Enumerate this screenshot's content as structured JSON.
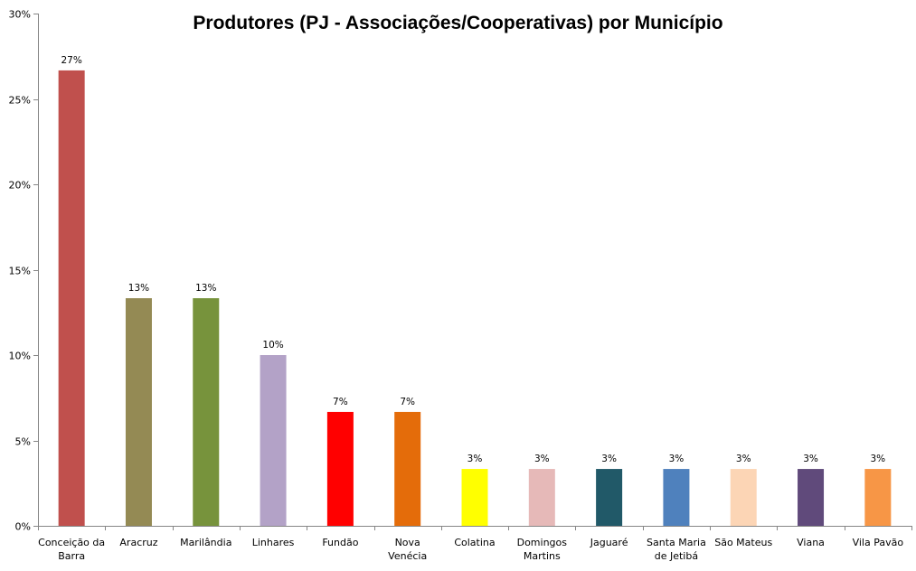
{
  "chart_data": {
    "type": "bar",
    "title": "Produtores (PJ - Associações/Cooperativas) por Município",
    "xlabel": "",
    "ylabel": "",
    "ylim": [
      0,
      30
    ],
    "yticks": [
      "0%",
      "5%",
      "10%",
      "15%",
      "20%",
      "25%",
      "30%"
    ],
    "ytick_values": [
      0,
      5,
      10,
      15,
      20,
      25,
      30
    ],
    "grid": false,
    "legend": "none",
    "categories": [
      [
        "Conceição da",
        "Barra"
      ],
      [
        "Aracruz"
      ],
      [
        "Marilândia"
      ],
      [
        "Linhares"
      ],
      [
        "Fundão"
      ],
      [
        "Nova",
        "Venécia"
      ],
      [
        "Colatina"
      ],
      [
        "Domingos",
        "Martins"
      ],
      [
        "Jaguaré"
      ],
      [
        "Santa Maria",
        "de Jetibá"
      ],
      [
        "São Mateus"
      ],
      [
        "Viana"
      ],
      [
        "Vila Pavão"
      ]
    ],
    "values": [
      26.67,
      13.33,
      13.33,
      10.0,
      6.67,
      6.67,
      3.33,
      3.33,
      3.33,
      3.33,
      3.33,
      3.33,
      3.33
    ],
    "data_labels": [
      "27%",
      "13%",
      "13%",
      "10%",
      "7%",
      "7%",
      "3%",
      "3%",
      "3%",
      "3%",
      "3%",
      "3%",
      "3%"
    ],
    "colors": [
      "#C0504D",
      "#948A54",
      "#77933C",
      "#B3A2C7",
      "#FF0000",
      "#E46C0A",
      "#FFFF00",
      "#E6B9B8",
      "#215968",
      "#4F81BD",
      "#FCD5B5",
      "#604A7B",
      "#F79646"
    ]
  }
}
